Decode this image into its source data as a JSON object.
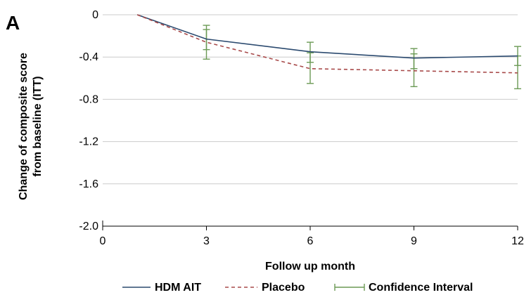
{
  "panel_label": "A",
  "chart_data": {
    "type": "line",
    "xlabel": "Follow up month",
    "ylabel": [
      "Change of composite score",
      "from baseline (ITT)"
    ],
    "xlim": [
      0,
      12
    ],
    "ylim": [
      -2.0,
      0
    ],
    "x_ticks": [
      0,
      3,
      6,
      9,
      12
    ],
    "x_tick_labels": [
      "0",
      "3",
      "6",
      "9",
      "12"
    ],
    "y_ticks": [
      0,
      -0.4,
      -0.8,
      -1.2,
      -1.6,
      -2.0
    ],
    "y_tick_labels": [
      "0",
      "-0.4",
      "-0.8",
      "-1.2",
      "-1.6",
      "-2.0"
    ],
    "grid": "horizontal",
    "legend_position": "bottom",
    "series": [
      {
        "name": "HDM AIT",
        "color": "#2b4a6f",
        "style": "solid",
        "x": [
          1,
          3,
          6,
          9,
          12
        ],
        "y": [
          0,
          -0.23,
          -0.35,
          -0.41,
          -0.39
        ],
        "ci_lower": [
          null,
          -0.33,
          -0.45,
          -0.51,
          -0.48
        ],
        "ci_upper": [
          null,
          -0.14,
          -0.26,
          -0.32,
          -0.3
        ]
      },
      {
        "name": "Placebo",
        "color": "#a84a4a",
        "style": "dashed",
        "x": [
          1,
          3,
          6,
          9,
          12
        ],
        "y": [
          0,
          -0.26,
          -0.51,
          -0.53,
          -0.55
        ],
        "ci_lower": [
          null,
          -0.42,
          -0.65,
          -0.68,
          -0.7
        ],
        "ci_upper": [
          null,
          -0.1,
          -0.36,
          -0.37,
          -0.39
        ]
      }
    ],
    "legend": [
      {
        "label": "HDM AIT",
        "kind": "line-solid",
        "color": "#2b4a6f"
      },
      {
        "label": "Placebo",
        "kind": "line-dashed",
        "color": "#a84a4a"
      },
      {
        "label": "Confidence Interval",
        "kind": "errorbar",
        "color": "#6b9a55"
      }
    ],
    "ci_color": "#6b9a55",
    "grid_color": "#cccccc",
    "axis_color": "#000000"
  }
}
